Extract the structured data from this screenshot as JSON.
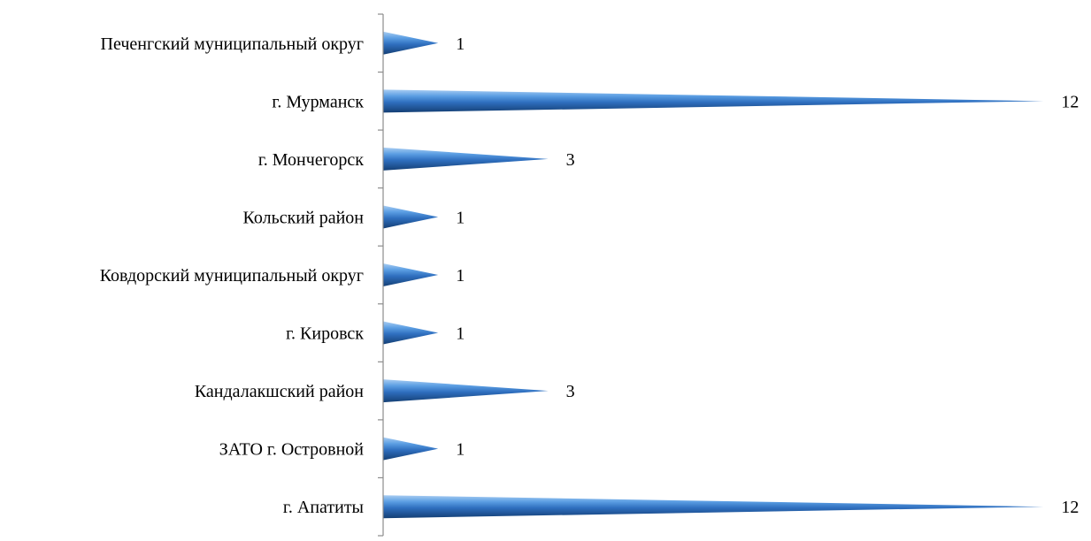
{
  "chart_data": {
    "type": "bar",
    "orientation": "horizontal",
    "title": "",
    "xlabel": "",
    "ylabel": "",
    "categories": [
      "Печенгский муниципальный округ",
      "г. Мурманск",
      "г. Мончегорск",
      "Кольский район",
      "Ковдорский муниципальный округ",
      "г. Кировск",
      "Кандалакшский район",
      "ЗАТО г. Островной",
      "г. Апатиты"
    ],
    "values": [
      1,
      12,
      3,
      1,
      1,
      1,
      3,
      1,
      12
    ],
    "value_labels": [
      "1",
      "12",
      "3",
      "1",
      "1",
      "1",
      "3",
      "1",
      "12"
    ],
    "xlim": [
      0,
      12.3
    ],
    "bar_shape": "cone",
    "bar_color": "#2f74c0",
    "legend": "none",
    "grid": false
  }
}
